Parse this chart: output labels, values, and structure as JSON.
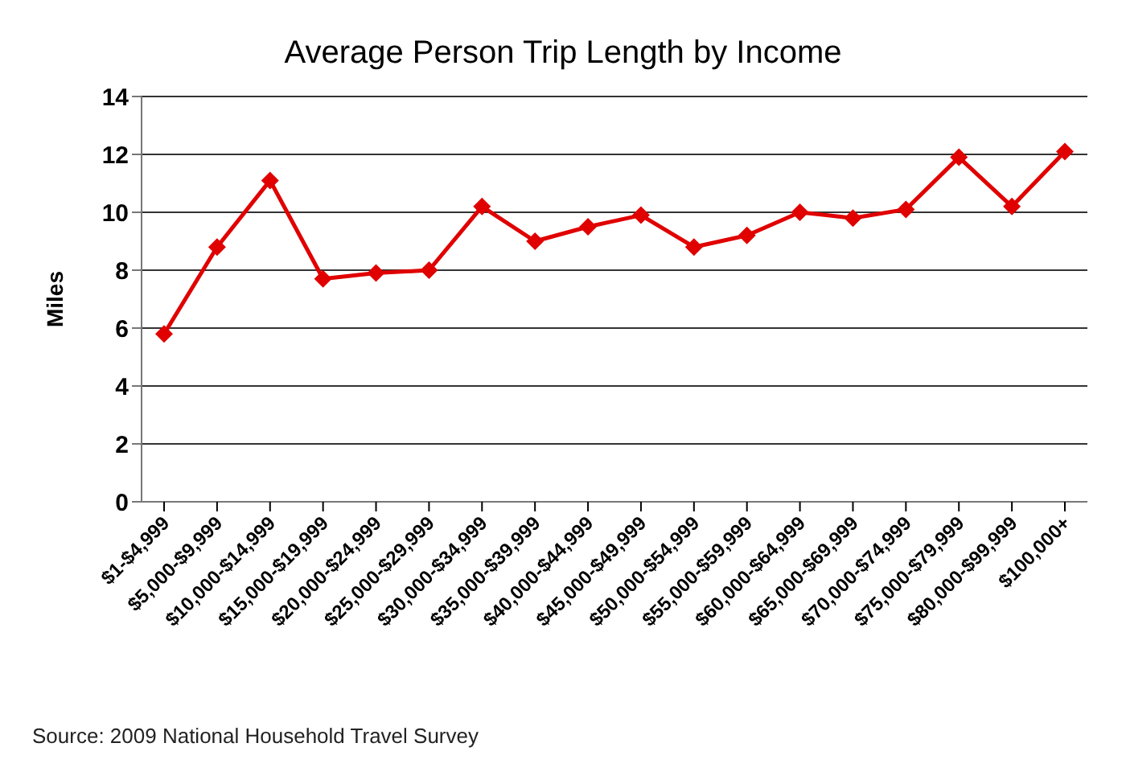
{
  "chart_data": {
    "type": "line",
    "title": "Average Person Trip Length by Income",
    "ylabel": "Miles",
    "categories": [
      "$1-$4,999",
      "$5,000-$9,999",
      "$10,000-$14,999",
      "$15,000-$19,999",
      "$20,000-$24,999",
      "$25,000-$29,999",
      "$30,000-$34,999",
      "$35,000-$39,999",
      "$40,000-$44,999",
      "$45,000-$49,999",
      "$50,000-$54,999",
      "$55,000-$59,999",
      "$60,000-$64,999",
      "$65,000-$69,999",
      "$70,000-$74,999",
      "$75,000-$79,999",
      "$80,000-$99,999",
      "$100,000+"
    ],
    "series": [
      {
        "color": "#e00000",
        "values": [
          5.8,
          8.8,
          11.1,
          7.7,
          7.9,
          8.0,
          10.2,
          9.0,
          9.5,
          9.9,
          8.8,
          9.2,
          10.0,
          9.8,
          10.1,
          11.9,
          10.2,
          12.1
        ]
      }
    ],
    "ylim": [
      0,
      14
    ],
    "yticks": [
      0,
      2,
      4,
      6,
      8,
      10,
      12,
      14
    ],
    "grid": "y",
    "marker": "diamond",
    "line_style": "solid",
    "annotations": [
      "Source: 2009 National Household Travel Survey"
    ]
  }
}
